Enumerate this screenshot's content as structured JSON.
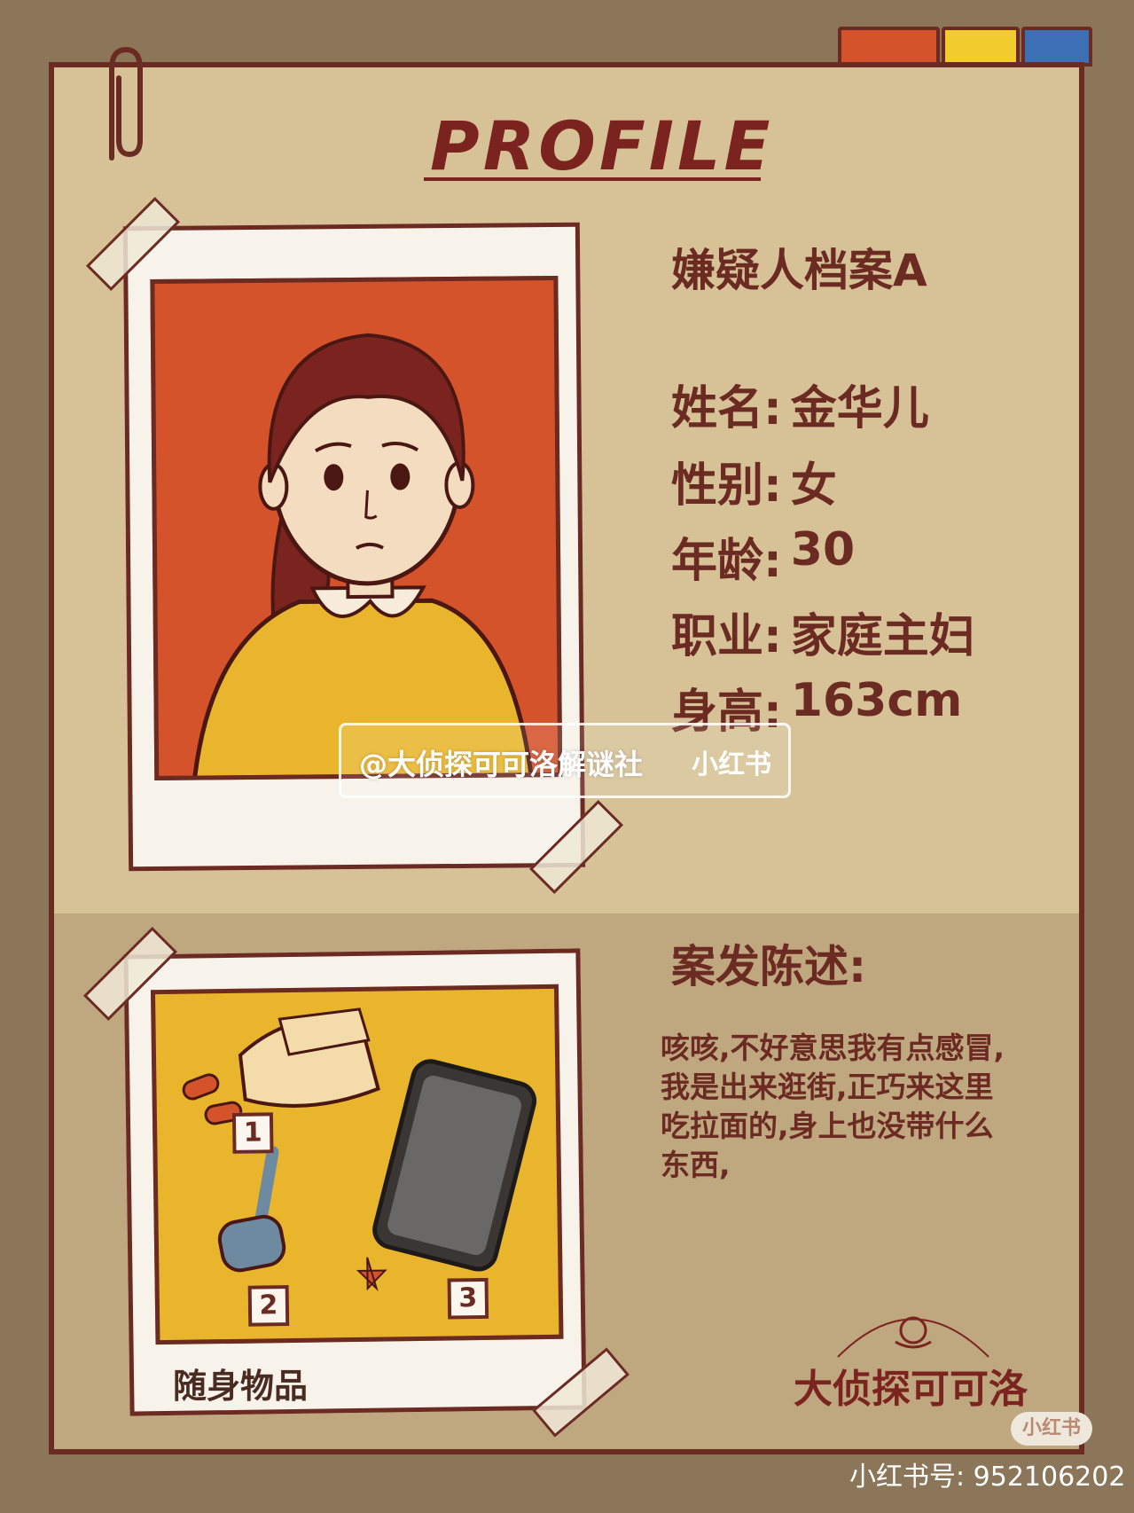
{
  "title": "PROFILE",
  "file_label": "嫌疑人档案A",
  "fields": [
    {
      "label": "姓名:",
      "value": "金华儿"
    },
    {
      "label": "性别:",
      "value": "女"
    },
    {
      "label": "年龄:",
      "value": "30"
    },
    {
      "label": "职业:",
      "value": "家庭主妇"
    },
    {
      "label": "身高:",
      "value": "163cm"
    }
  ],
  "statement_heading": "案发陈述:",
  "statement_lines": [
    "咳咳,不好意思我有点感冒,",
    "我是出来逛街,正巧来这里",
    "吃拉面的,身上也没带什么",
    "东西,"
  ],
  "belongings_caption": "随身物品",
  "evidence_markers": [
    "1",
    "2",
    "3"
  ],
  "watermark": {
    "handle": "@大侦探可可洛解谜社",
    "platform": "小红书"
  },
  "brand_logo": "大侦探可可洛",
  "badge_label": "小红书",
  "redbook_id": "小红书号: 952106202",
  "colors": {
    "frame_border": "#6b2a22",
    "paper": "#d6c296",
    "photo_bg": "#d4532a",
    "items_bg": "#e9b52c",
    "tab_red": "#d4532a",
    "tab_yellow": "#f2cc2e",
    "tab_blue": "#3c6fb3"
  }
}
